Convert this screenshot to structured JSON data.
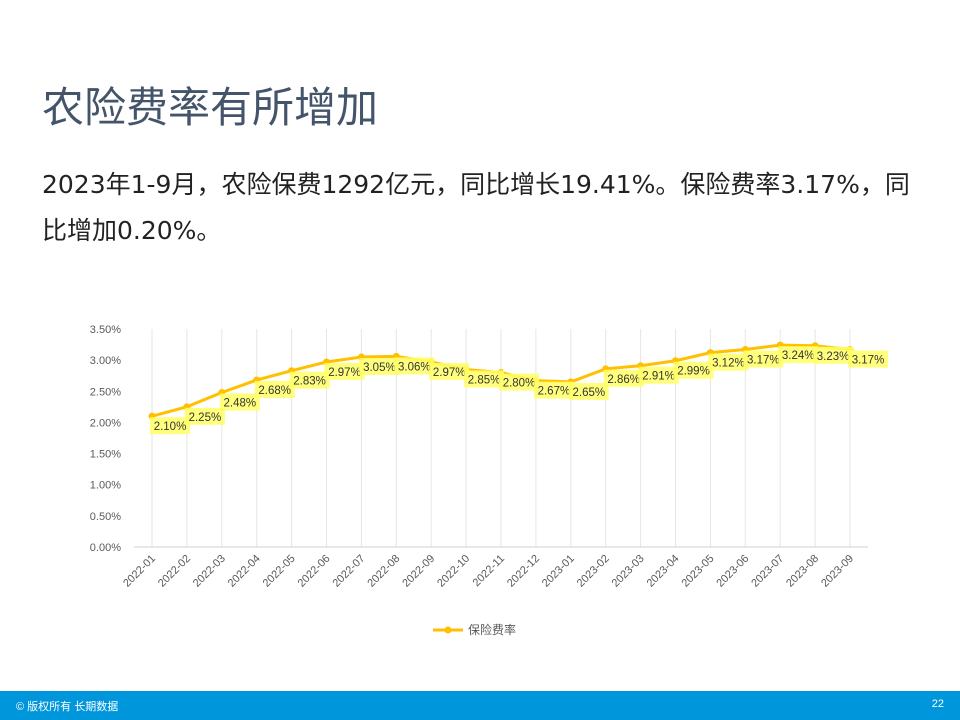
{
  "title": "农险费率有所增加",
  "body": "2023年1-9月，农险保费1292亿元，同比增长19.41%。保险费率3.17%，同比增加0.20%。",
  "footer": {
    "copyright": "© 版权所有 长期数据",
    "page": "22"
  },
  "colors": {
    "line": "#ffc000",
    "label_bg": "#ffff66",
    "footer": "#0096dc",
    "title": "#44546a"
  },
  "chart_data": {
    "type": "line",
    "categories": [
      "2022-01",
      "2022-02",
      "2022-03",
      "2022-04",
      "2022-05",
      "2022-06",
      "2022-07",
      "2022-08",
      "2022-09",
      "2022-10",
      "2022-11",
      "2022-12",
      "2023-01",
      "2023-02",
      "2023-03",
      "2023-04",
      "2023-05",
      "2023-06",
      "2023-07",
      "2023-08",
      "2023-09"
    ],
    "series": [
      {
        "name": "保险费率",
        "values": [
          2.1,
          2.25,
          2.48,
          2.68,
          2.83,
          2.97,
          3.05,
          3.06,
          2.97,
          2.85,
          2.8,
          2.67,
          2.65,
          2.86,
          2.91,
          2.99,
          3.12,
          3.17,
          3.24,
          3.23,
          3.17
        ]
      }
    ],
    "data_labels": [
      "2.10%",
      "2.25%",
      "2.48%",
      "2.68%",
      "2.83%",
      "2.97%",
      "3.05%",
      "3.06%",
      "2.97%",
      "2.85%",
      "2.80%",
      "2.67%",
      "2.65%",
      "2.86%",
      "2.91%",
      "2.99%",
      "3.12%",
      "3.17%",
      "3.24%",
      "3.23%",
      "3.17%"
    ],
    "yticks": [
      "0.00%",
      "0.50%",
      "1.00%",
      "1.50%",
      "2.00%",
      "2.50%",
      "3.00%",
      "3.50%"
    ],
    "ylim": [
      0,
      3.5
    ],
    "legend": "bottom",
    "grid": "vertical"
  }
}
